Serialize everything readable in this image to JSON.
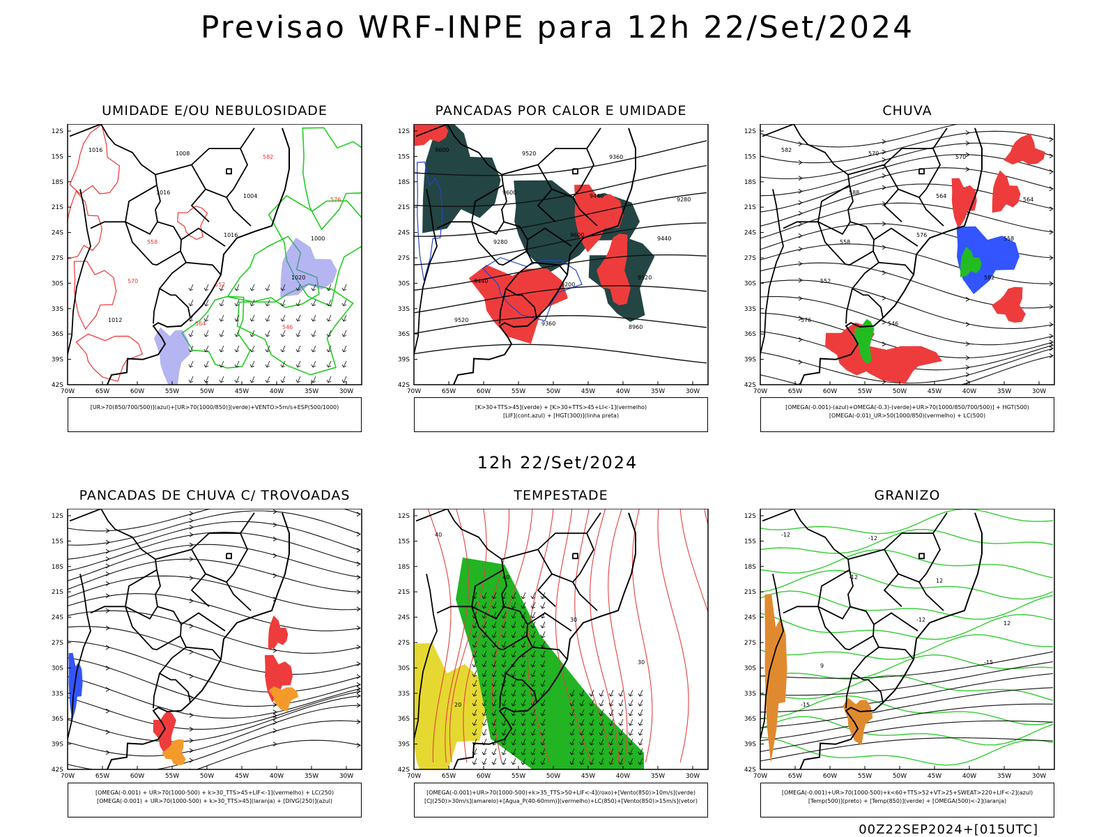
{
  "title": "Previsao WRF-INPE  para 12h 22/Set/2024",
  "mid_title": "12h 22/Set/2024",
  "footer": "00Z22SEP2024+[015UTC]",
  "lat_ticks": [
    "12S",
    "15S",
    "18S",
    "21S",
    "24S",
    "27S",
    "30S",
    "33S",
    "36S",
    "39S",
    "42S"
  ],
  "lon_ticks": [
    "70W",
    "65W",
    "60W",
    "55W",
    "50W",
    "45W",
    "40W",
    "35W",
    "30W"
  ],
  "panels": [
    {
      "title": "UMIDADE E/OU NEBULOSIDADE",
      "legend": [
        "[UR>70(850/700/500)](azul)+[UR>70(1000/850)](verde)+VENTO>5m/s+ESP(500/1000)"
      ],
      "labels": [
        "1016",
        "1016",
        "1016",
        "1020",
        "1012",
        "1008",
        "1004",
        "1000",
        "570",
        "564",
        "582",
        "576",
        "558",
        "552",
        "546"
      ]
    },
    {
      "title": "PANCADAS POR CALOR E UMIDADE",
      "legend": [
        "[K>30+TTS>45](verde) + [K>30+TTS>45+LI<-1](vermelho)",
        "[LIF](cont.azul) + [HGT(300)](linha preta)"
      ],
      "labels": [
        "9600",
        "9600",
        "9600",
        "9520",
        "9520",
        "9520",
        "9440",
        "9440",
        "9440",
        "9360",
        "9360",
        "9280",
        "9280",
        "9200",
        "8960"
      ]
    },
    {
      "title": "CHUVA",
      "legend": [
        "[OMEGA(-0.001)-(azul)+OMEGA(-0.3)-(verde)+UR>70(1000/850/700/500)] + HGT(500)",
        "[OMEGA(-0.01)_UR>50(1000/850)(vermelho) + LC(500)"
      ],
      "labels": [
        "582",
        "588",
        "576",
        "582",
        "576",
        "570",
        "564",
        "558",
        "552",
        "546",
        "570",
        "564",
        "558"
      ]
    },
    {
      "title": "PANCADAS DE CHUVA C/ TROVOADAS",
      "legend": [
        "[OMEGA(-0.001) + UR>70(1000-500) + k>30_TTS>45+LIF<-1](vermelho) + LC(250)",
        "[OMEGA(-0.001) + UR>70(1000-500) + k>30_TTS>45](laranja) + [DIVG(250)](azul)"
      ],
      "labels": []
    },
    {
      "title": "TEMPESTADE",
      "legend": [
        "[OMEGA(-0.001)+UR>70(1000-500)+k>35_TTS>50+LIF<-4](roxo)+[Vento(850)>10m/s](verde)",
        "[CJ(250)>30m/s](amarelo)+[Agua_P(40-60mm)](vermelho)+LC(850)+[Vento(850)>15m/s](vetor)"
      ],
      "labels": [
        "40",
        "40",
        "30",
        "30",
        "20"
      ]
    },
    {
      "title": "GRANIZO",
      "legend": [
        "[OMEGA(-0.001)+UR>70(1000-500)+k<60+TTS>52+VT>25+SWEAT>220+LIF<-2](azul)",
        "[Temp(500)](preto) + [Temp(850)](verde) + [OMEGA(500)<-2](laranja)"
      ],
      "labels": [
        "-12",
        "-12",
        "-12",
        "-15",
        "-15",
        "-12",
        "12",
        "12",
        "9"
      ]
    }
  ]
}
